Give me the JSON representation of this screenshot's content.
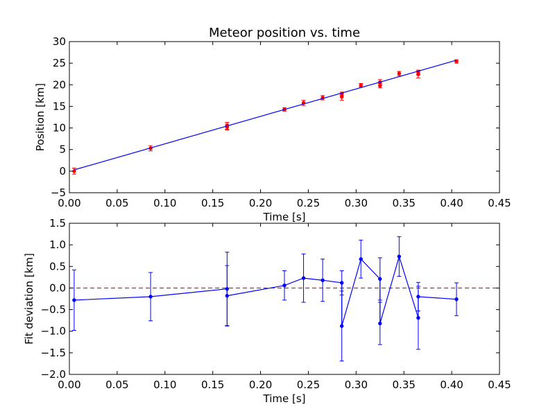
{
  "chart_data": [
    {
      "type": "scatter",
      "title": "Meteor position vs. time",
      "xlabel": "Time [s]",
      "ylabel": "Position [km]",
      "xlim": [
        0,
        0.45
      ],
      "ylim": [
        -5,
        30
      ],
      "xticks": [
        "0.00",
        "0.05",
        "0.10",
        "0.15",
        "0.20",
        "0.25",
        "0.30",
        "0.35",
        "0.40",
        "0.45"
      ],
      "yticks": [
        "−5",
        "0",
        "5",
        "10",
        "15",
        "20",
        "25",
        "30"
      ],
      "grid": false,
      "series": [
        {
          "kind": "errorbar-points",
          "color": "#ff0000",
          "x": [
            0.005,
            0.085,
            0.165,
            0.165,
            0.225,
            0.245,
            0.265,
            0.285,
            0.285,
            0.305,
            0.325,
            0.325,
            0.345,
            0.365,
            0.365,
            0.405
          ],
          "y": [
            0.0,
            5.3,
            10.5,
            10.2,
            14.3,
            15.8,
            17.0,
            17.2,
            17.9,
            19.9,
            20.6,
            19.8,
            22.6,
            22.4,
            22.9,
            25.4
          ],
          "yerr": [
            0.7,
            0.6,
            0.8,
            0.7,
            0.4,
            0.6,
            0.5,
            0.8,
            0.4,
            0.4,
            0.6,
            0.5,
            0.5,
            0.8,
            0.5,
            0.4
          ]
        },
        {
          "kind": "fit-line",
          "color": "#0000ff",
          "x": [
            0.005,
            0.405
          ],
          "y": [
            0.3,
            25.7
          ]
        }
      ]
    },
    {
      "type": "line",
      "xlabel": "Time [s]",
      "ylabel": "Fit deviation [km]",
      "xlim": [
        0,
        0.45
      ],
      "ylim": [
        -2.0,
        1.5
      ],
      "xticks": [
        "0.00",
        "0.05",
        "0.10",
        "0.15",
        "0.20",
        "0.25",
        "0.30",
        "0.35",
        "0.40",
        "0.45"
      ],
      "yticks": [
        "−2.0",
        "−1.5",
        "−1.0",
        "−0.5",
        "0.0",
        "0.5",
        "1.0",
        "1.5"
      ],
      "grid": false,
      "reference_line": {
        "y": 0.0,
        "color": "#ff0000",
        "style": "dashed"
      },
      "series": [
        {
          "kind": "errorbar-line",
          "color": "#0000ff",
          "x": [
            0.005,
            0.085,
            0.165,
            0.165,
            0.225,
            0.245,
            0.265,
            0.285,
            0.285,
            0.305,
            0.325,
            0.325,
            0.345,
            0.365,
            0.365,
            0.405
          ],
          "y": [
            -0.28,
            -0.2,
            -0.02,
            -0.18,
            0.06,
            0.23,
            0.18,
            0.12,
            -0.88,
            0.67,
            0.21,
            -0.82,
            0.73,
            -0.69,
            -0.2,
            -0.26
          ],
          "yerr": [
            0.7,
            0.56,
            0.85,
            0.7,
            0.34,
            0.56,
            0.49,
            0.28,
            0.81,
            0.44,
            0.49,
            0.49,
            0.46,
            0.73,
            0.33,
            0.38
          ]
        }
      ]
    }
  ]
}
